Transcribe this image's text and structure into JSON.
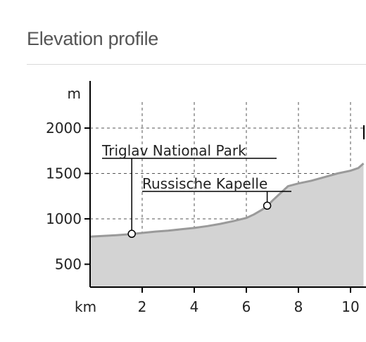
{
  "page": {
    "title": "Elevation profile"
  },
  "chart_data": {
    "type": "area",
    "title": "",
    "xlabel": "km",
    "ylabel": "m",
    "xlim": [
      0,
      10.5
    ],
    "ylim": [
      230,
      2260
    ],
    "xticks": [
      2,
      4,
      6,
      8,
      10
    ],
    "yticks": [
      500,
      1000,
      1500,
      2000
    ],
    "grid": true,
    "fill_color": "#d3d3d3",
    "line_color": "#9a9a9a",
    "series": [
      {
        "x": [
          0,
          0.5,
          1,
          1.5,
          2,
          2.5,
          3,
          3.5,
          4,
          4.5,
          5,
          5.5,
          6,
          6.3,
          6.6,
          6.8,
          7,
          7.3,
          7.6,
          8,
          8.5,
          9,
          9.5,
          10,
          10.3,
          10.5
        ],
        "y": [
          805,
          812,
          820,
          830,
          845,
          860,
          870,
          885,
          900,
          920,
          945,
          975,
          1010,
          1050,
          1100,
          1140,
          1200,
          1280,
          1360,
          1390,
          1420,
          1460,
          1500,
          1530,
          1560,
          1610
        ]
      }
    ],
    "annotations": [
      {
        "label": "Triglav National Park",
        "x": 1.6,
        "y": 835
      },
      {
        "label": "Russische Kapelle",
        "x": 6.8,
        "y": 1145
      }
    ]
  }
}
